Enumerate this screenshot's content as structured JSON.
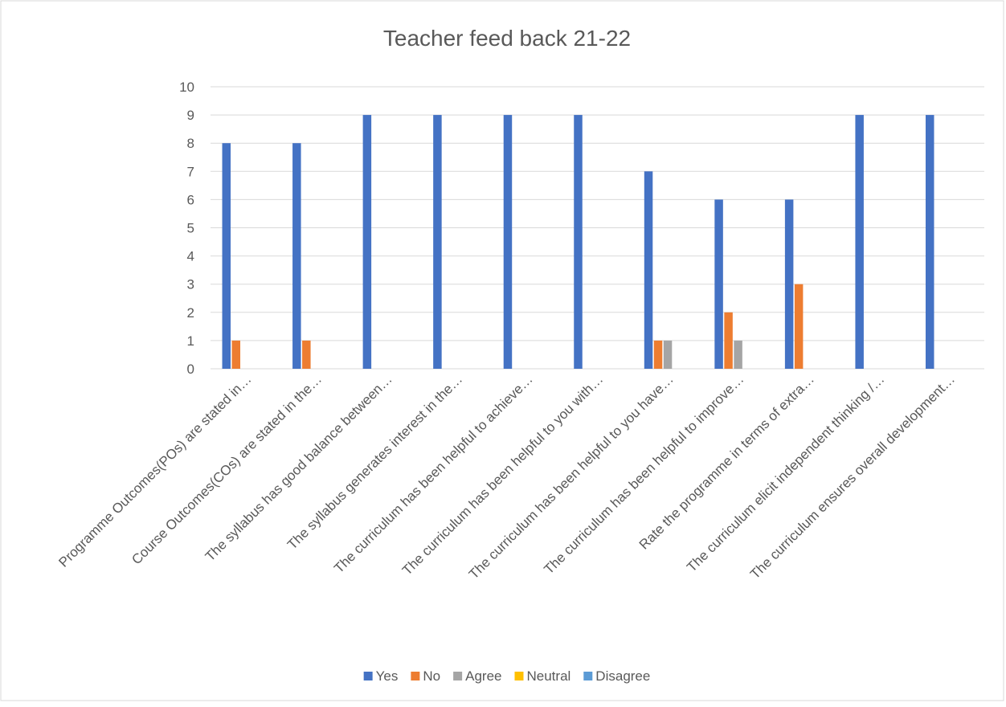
{
  "chart_data": {
    "type": "bar",
    "title": "Teacher feed back 21-22",
    "categories": [
      "Programme Outcomes(POs) are stated in…",
      "Course Outcomes(COs) are stated in the…",
      "The syllabus has good balance between…",
      "The syllabus generates interest in the…",
      "The curriculum has been helpful to achieve…",
      "The curriculum has been helpful to you with…",
      "The curriculum has been helpful to you have…",
      "The curriculum has been helpful to improve…",
      "Rate the programme in terms of extra…",
      "The curriculum elicit independent thinking /…",
      "The curriculum ensures overall development…"
    ],
    "series": [
      {
        "name": "Yes",
        "color": "#4472c4",
        "values": [
          8,
          8,
          9,
          9,
          9,
          9,
          7,
          6,
          6,
          9,
          9
        ]
      },
      {
        "name": "No",
        "color": "#ed7d31",
        "values": [
          1,
          1,
          0,
          0,
          0,
          0,
          1,
          2,
          3,
          0,
          0
        ]
      },
      {
        "name": "Agree",
        "color": "#a5a5a5",
        "values": [
          0,
          0,
          0,
          0,
          0,
          0,
          1,
          1,
          0,
          0,
          0
        ]
      },
      {
        "name": "Neutral",
        "color": "#ffc000",
        "values": [
          0,
          0,
          0,
          0,
          0,
          0,
          0,
          0,
          0,
          0,
          0
        ]
      },
      {
        "name": "Disagree",
        "color": "#5b9bd5",
        "values": [
          0,
          0,
          0,
          0,
          0,
          0,
          0,
          0,
          0,
          0,
          0
        ]
      }
    ],
    "ylim": [
      0,
      10
    ],
    "yticks": [
      0,
      1,
      2,
      3,
      4,
      5,
      6,
      7,
      8,
      9,
      10
    ],
    "grid": true,
    "legend": "bottom"
  }
}
